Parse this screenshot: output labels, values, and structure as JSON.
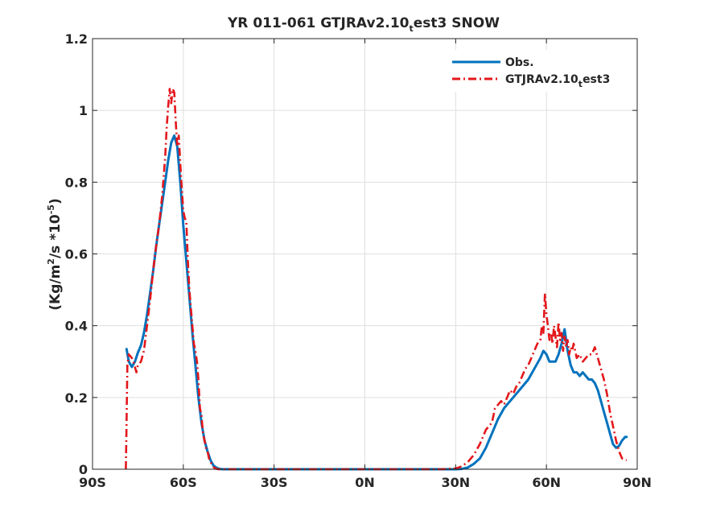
{
  "chart_data": {
    "type": "line",
    "title_main": "YR 011-061 GTJRAv2.10",
    "title_sub": "t",
    "title_rest": "est3 SNOW",
    "ylabel_main": "(Kg/m",
    "ylabel_sup1": "2",
    "ylabel_mid": "/s *10",
    "ylabel_sup2": "-5",
    "ylabel_end": ")",
    "xlim": [
      -90,
      90
    ],
    "ylim": [
      0,
      1.2
    ],
    "xticks": [
      -90,
      -60,
      -30,
      0,
      30,
      60,
      90
    ],
    "xtick_labels": [
      "90S",
      "60S",
      "30S",
      "0N",
      "30N",
      "60N",
      "90N"
    ],
    "yticks": [
      0,
      0.2,
      0.4,
      0.6,
      0.8,
      1,
      1.2
    ],
    "ytick_labels": [
      "0",
      "0.2",
      "0.4",
      "0.6",
      "0.8",
      "1",
      "1.2"
    ],
    "grid": true,
    "legend_position": "top-right",
    "series": [
      {
        "name": "Obs.",
        "legend_main": "Obs.",
        "legend_sub": "",
        "legend_rest": "",
        "color": "#0072BD",
        "style": "solid",
        "x": [
          -78.75,
          -78,
          -77,
          -76,
          -75,
          -74,
          -73,
          -72,
          -71,
          -70,
          -69,
          -68,
          -67,
          -66,
          -65,
          -64,
          -63,
          -62,
          -61,
          -60,
          -59,
          -58,
          -57,
          -56,
          -55,
          -54,
          -53,
          -52,
          -51,
          -50,
          -49,
          -48,
          -47,
          -46,
          -45,
          -40,
          -30,
          -20,
          -10,
          0,
          10,
          20,
          25,
          30,
          32,
          34,
          36,
          38,
          40,
          42,
          44,
          46,
          48,
          50,
          52,
          54,
          56,
          58,
          59,
          60,
          61,
          62,
          63,
          64,
          65,
          66,
          67,
          68,
          69,
          70,
          71,
          72,
          73,
          74,
          75,
          76,
          77,
          78,
          79,
          80,
          81,
          82,
          83,
          84,
          85,
          86,
          86.5
        ],
        "y": [
          0.335,
          0.3,
          0.285,
          0.3,
          0.325,
          0.345,
          0.38,
          0.43,
          0.49,
          0.55,
          0.62,
          0.68,
          0.74,
          0.8,
          0.86,
          0.91,
          0.93,
          0.9,
          0.8,
          0.68,
          0.58,
          0.48,
          0.38,
          0.29,
          0.2,
          0.13,
          0.08,
          0.05,
          0.025,
          0.01,
          0.004,
          0.001,
          0,
          0,
          0,
          0,
          0,
          0,
          0,
          0,
          0,
          0,
          0,
          0,
          0.001,
          0.005,
          0.015,
          0.03,
          0.06,
          0.1,
          0.14,
          0.17,
          0.19,
          0.21,
          0.23,
          0.25,
          0.28,
          0.31,
          0.33,
          0.32,
          0.3,
          0.3,
          0.3,
          0.32,
          0.35,
          0.39,
          0.33,
          0.29,
          0.27,
          0.27,
          0.26,
          0.27,
          0.26,
          0.25,
          0.25,
          0.24,
          0.22,
          0.19,
          0.16,
          0.13,
          0.1,
          0.07,
          0.06,
          0.065,
          0.08,
          0.09,
          0.09
        ]
      },
      {
        "name": "GTJRAv2.10test3",
        "legend_main": "GTJRAv2.10",
        "legend_sub": "t",
        "legend_rest": "est3",
        "color": "#E3171B",
        "style": "dashdot",
        "x": [
          -79,
          -78.8,
          -78.5,
          -78,
          -77.5,
          -77,
          -76.5,
          -76,
          -75.5,
          -75,
          -74,
          -73,
          -72,
          -71,
          -70,
          -69,
          -68,
          -67,
          -66,
          -65.5,
          -65,
          -64.5,
          -64,
          -63.5,
          -63,
          -62.5,
          -62,
          -61.5,
          -61,
          -60.5,
          -60,
          -59.5,
          -59,
          -58.5,
          -58,
          -57.5,
          -57,
          -56.5,
          -56,
          -55.5,
          -55,
          -54.5,
          -54,
          -53.5,
          -53,
          -52.5,
          -52,
          -51.5,
          -51,
          -50.5,
          -50,
          -49.5,
          -49,
          -48.5,
          -48,
          -47,
          -46,
          -45,
          -40,
          -30,
          -20,
          -10,
          0,
          10,
          20,
          25,
          30,
          32,
          34,
          36,
          38,
          40,
          42,
          43,
          44,
          45,
          46,
          47,
          48,
          49,
          50,
          51,
          52,
          53,
          54,
          55,
          56,
          57,
          58,
          58.5,
          59,
          59.5,
          60,
          60.5,
          61,
          61.5,
          62,
          62.5,
          63,
          63.5,
          64,
          64.5,
          65,
          65.5,
          66,
          66.5,
          67,
          67.5,
          68,
          68.5,
          69,
          70,
          71,
          72,
          73,
          74,
          75,
          76,
          77,
          78,
          79,
          80,
          81,
          82,
          83,
          84,
          85,
          86,
          86.5
        ],
        "y": [
          0,
          0.1,
          0.29,
          0.32,
          0.315,
          0.31,
          0.3,
          0.285,
          0.27,
          0.29,
          0.3,
          0.33,
          0.4,
          0.47,
          0.55,
          0.62,
          0.68,
          0.76,
          0.87,
          0.95,
          1.01,
          1.06,
          1.02,
          1.06,
          1.05,
          0.97,
          0.9,
          0.93,
          0.85,
          0.78,
          0.72,
          0.7,
          0.69,
          0.58,
          0.5,
          0.45,
          0.4,
          0.35,
          0.33,
          0.3,
          0.25,
          0.17,
          0.15,
          0.1,
          0.08,
          0.06,
          0.05,
          0.03,
          0.02,
          0.012,
          0.006,
          0.003,
          0.001,
          0,
          0,
          0,
          0,
          0,
          0,
          0,
          0,
          0,
          0,
          0,
          0,
          0,
          0.002,
          0.008,
          0.02,
          0.04,
          0.07,
          0.11,
          0.13,
          0.17,
          0.18,
          0.19,
          0.18,
          0.2,
          0.22,
          0.21,
          0.23,
          0.24,
          0.26,
          0.28,
          0.29,
          0.31,
          0.33,
          0.35,
          0.36,
          0.4,
          0.38,
          0.49,
          0.43,
          0.4,
          0.36,
          0.38,
          0.35,
          0.4,
          0.37,
          0.34,
          0.41,
          0.36,
          0.38,
          0.33,
          0.37,
          0.34,
          0.36,
          0.32,
          0.34,
          0.33,
          0.35,
          0.31,
          0.32,
          0.3,
          0.31,
          0.32,
          0.32,
          0.34,
          0.31,
          0.28,
          0.25,
          0.21,
          0.16,
          0.12,
          0.08,
          0.05,
          0.03,
          0.026,
          0.025
        ]
      }
    ]
  }
}
